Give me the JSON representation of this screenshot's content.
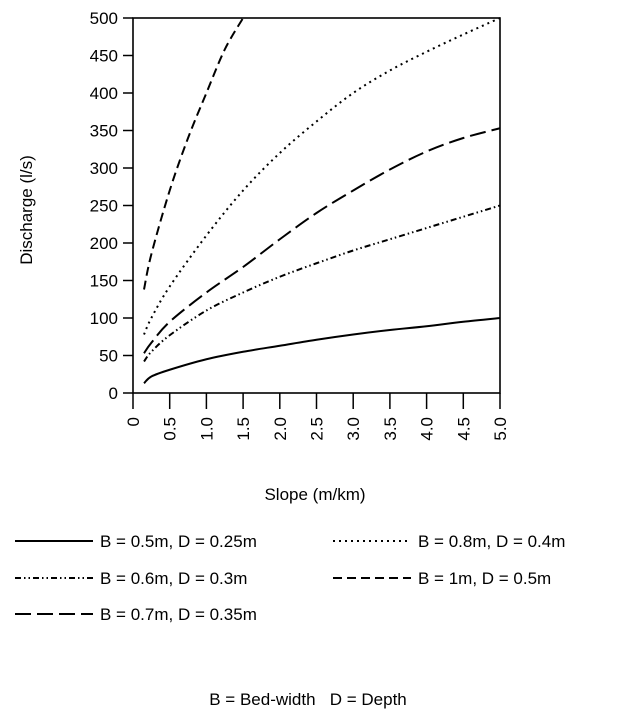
{
  "chart_data": {
    "type": "line",
    "xlabel": "Slope (m/km)",
    "ylabel": "Discharge (l/s)",
    "xlim": [
      0,
      5.0
    ],
    "ylim": [
      0,
      500
    ],
    "xticks": [
      "0",
      "0.5",
      "1.0",
      "1.5",
      "2.0",
      "2.5",
      "3.0",
      "3.5",
      "4.0",
      "4.5",
      "5.0"
    ],
    "yticks": [
      "0",
      "50",
      "100",
      "150",
      "200",
      "250",
      "300",
      "350",
      "400",
      "450",
      "500"
    ],
    "grid": false,
    "legend_position": "bottom",
    "series": [
      {
        "name": "B = 0.5m, D = 0.25m",
        "dash": "solid",
        "x": [
          0.15,
          0.25,
          0.5,
          1.0,
          1.5,
          2.0,
          2.5,
          3.0,
          3.5,
          4.0,
          4.5,
          5.0
        ],
        "y": [
          13,
          22,
          31,
          45,
          55,
          63,
          71,
          78,
          84,
          89,
          95,
          100
        ]
      },
      {
        "name": "B = 0.6m, D = 0.3m",
        "dash": "dash-dot-dot",
        "x": [
          0.15,
          0.25,
          0.5,
          1.0,
          1.5,
          2.0,
          2.5,
          3.0,
          3.5,
          4.0,
          4.5,
          5.0
        ],
        "y": [
          42,
          55,
          77,
          110,
          134,
          155,
          173,
          190,
          205,
          220,
          235,
          250
        ]
      },
      {
        "name": "B = 0.7m, D = 0.35m",
        "dash": "long-dash",
        "x": [
          0.15,
          0.25,
          0.5,
          1.0,
          1.5,
          2.0,
          2.5,
          3.0,
          3.5,
          4.0,
          4.5,
          5.0
        ],
        "y": [
          53,
          67,
          95,
          134,
          168,
          205,
          240,
          270,
          298,
          322,
          340,
          353
        ]
      },
      {
        "name": "B = 0.8m, D = 0.4m",
        "dash": "dotted",
        "x": [
          0.15,
          0.25,
          0.5,
          1.0,
          1.5,
          2.0,
          2.5,
          3.0,
          3.5,
          4.0,
          4.5,
          5.0
        ],
        "y": [
          78,
          100,
          142,
          210,
          270,
          320,
          362,
          400,
          430,
          455,
          478,
          500
        ]
      },
      {
        "name": "B = 1m, D = 0.5m",
        "dash": "dashed",
        "x": [
          0.15,
          0.25,
          0.5,
          0.75,
          1.0,
          1.25,
          1.5
        ],
        "y": [
          138,
          185,
          270,
          340,
          400,
          458,
          500
        ]
      }
    ],
    "legend_note": "B = Bed-width   D = Depth"
  }
}
